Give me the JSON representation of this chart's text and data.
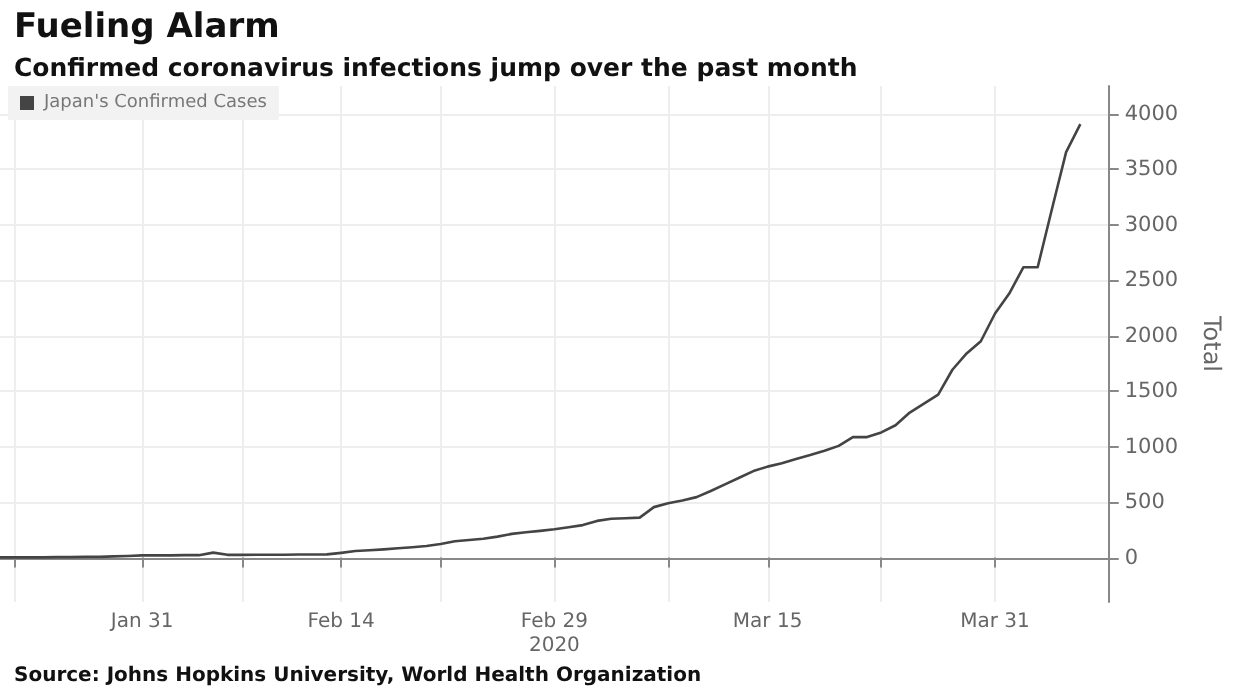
{
  "chart_data": {
    "type": "line",
    "title": "Fueling Alarm",
    "subtitle": "Confirmed coronavirus infections jump over the past month",
    "ylabel": "Total",
    "annotations": [
      "Source: Johns Hopkins University, World Health Organization"
    ],
    "x": [
      "2020-01-21",
      "2020-01-22",
      "2020-01-23",
      "2020-01-24",
      "2020-01-25",
      "2020-01-26",
      "2020-01-27",
      "2020-01-28",
      "2020-01-29",
      "2020-01-30",
      "2020-01-31",
      "2020-02-01",
      "2020-02-02",
      "2020-02-03",
      "2020-02-04",
      "2020-02-05",
      "2020-02-06",
      "2020-02-07",
      "2020-02-08",
      "2020-02-09",
      "2020-02-10",
      "2020-02-11",
      "2020-02-12",
      "2020-02-13",
      "2020-02-14",
      "2020-02-15",
      "2020-02-16",
      "2020-02-17",
      "2020-02-18",
      "2020-02-19",
      "2020-02-20",
      "2020-02-21",
      "2020-02-22",
      "2020-02-23",
      "2020-02-24",
      "2020-02-25",
      "2020-02-26",
      "2020-02-27",
      "2020-02-28",
      "2020-02-29",
      "2020-03-01",
      "2020-03-02",
      "2020-03-03",
      "2020-03-04",
      "2020-03-05",
      "2020-03-06",
      "2020-03-07",
      "2020-03-08",
      "2020-03-09",
      "2020-03-10",
      "2020-03-11",
      "2020-03-12",
      "2020-03-13",
      "2020-03-14",
      "2020-03-15",
      "2020-03-16",
      "2020-03-17",
      "2020-03-18",
      "2020-03-19",
      "2020-03-20",
      "2020-03-21",
      "2020-03-22",
      "2020-03-23",
      "2020-03-24",
      "2020-03-25",
      "2020-03-26",
      "2020-03-27",
      "2020-03-28",
      "2020-03-29",
      "2020-03-30",
      "2020-03-31",
      "2020-04-01",
      "2020-04-02",
      "2020-04-03",
      "2020-04-04",
      "2020-04-05",
      "2020-04-06"
    ],
    "series": [
      {
        "name": "Japan's Confirmed Cases",
        "color": "#444444",
        "values": [
          2,
          2,
          2,
          2,
          4,
          4,
          7,
          7,
          11,
          15,
          20,
          20,
          20,
          22,
          22,
          45,
          25,
          25,
          26,
          26,
          26,
          28,
          28,
          29,
          43,
          59,
          66,
          74,
          84,
          94,
          105,
          122,
          147,
          159,
          170,
          189,
          214,
          228,
          241,
          256,
          274,
          293,
          331,
          350,
          355,
          360,
          455,
          490,
          515,
          545,
          600,
          660,
          720,
          780,
          820,
          850,
          889,
          924,
          963,
          1007,
          1086,
          1086,
          1128,
          1193,
          1307,
          1387,
          1468,
          1693,
          1840,
          1950,
          2200,
          2380,
          2617,
          2617,
          3139,
          3654,
          3906
        ]
      }
    ],
    "xlim": [
      "2020-01-21",
      "2020-04-08"
    ],
    "xticks": [
      {
        "value": "2020-01-22",
        "label": null
      },
      {
        "value": "2020-01-31",
        "label": "Jan 31"
      },
      {
        "value": "2020-02-07",
        "label": null
      },
      {
        "value": "2020-02-14",
        "label": "Feb 14"
      },
      {
        "value": "2020-02-21",
        "label": null
      },
      {
        "value": "2020-02-29",
        "label": "Feb 29\n2020"
      },
      {
        "value": "2020-03-08",
        "label": null
      },
      {
        "value": "2020-03-15",
        "label": "Mar 15"
      },
      {
        "value": "2020-03-23",
        "label": null
      },
      {
        "value": "2020-03-31",
        "label": "Mar 31"
      }
    ],
    "ylim": [
      -400,
      4250
    ],
    "yticks": [
      0,
      500,
      1000,
      1500,
      2000,
      2500,
      3000,
      3500,
      4000
    ],
    "grid": true,
    "legend": "top left",
    "marker": "none",
    "line_style": "solid"
  }
}
